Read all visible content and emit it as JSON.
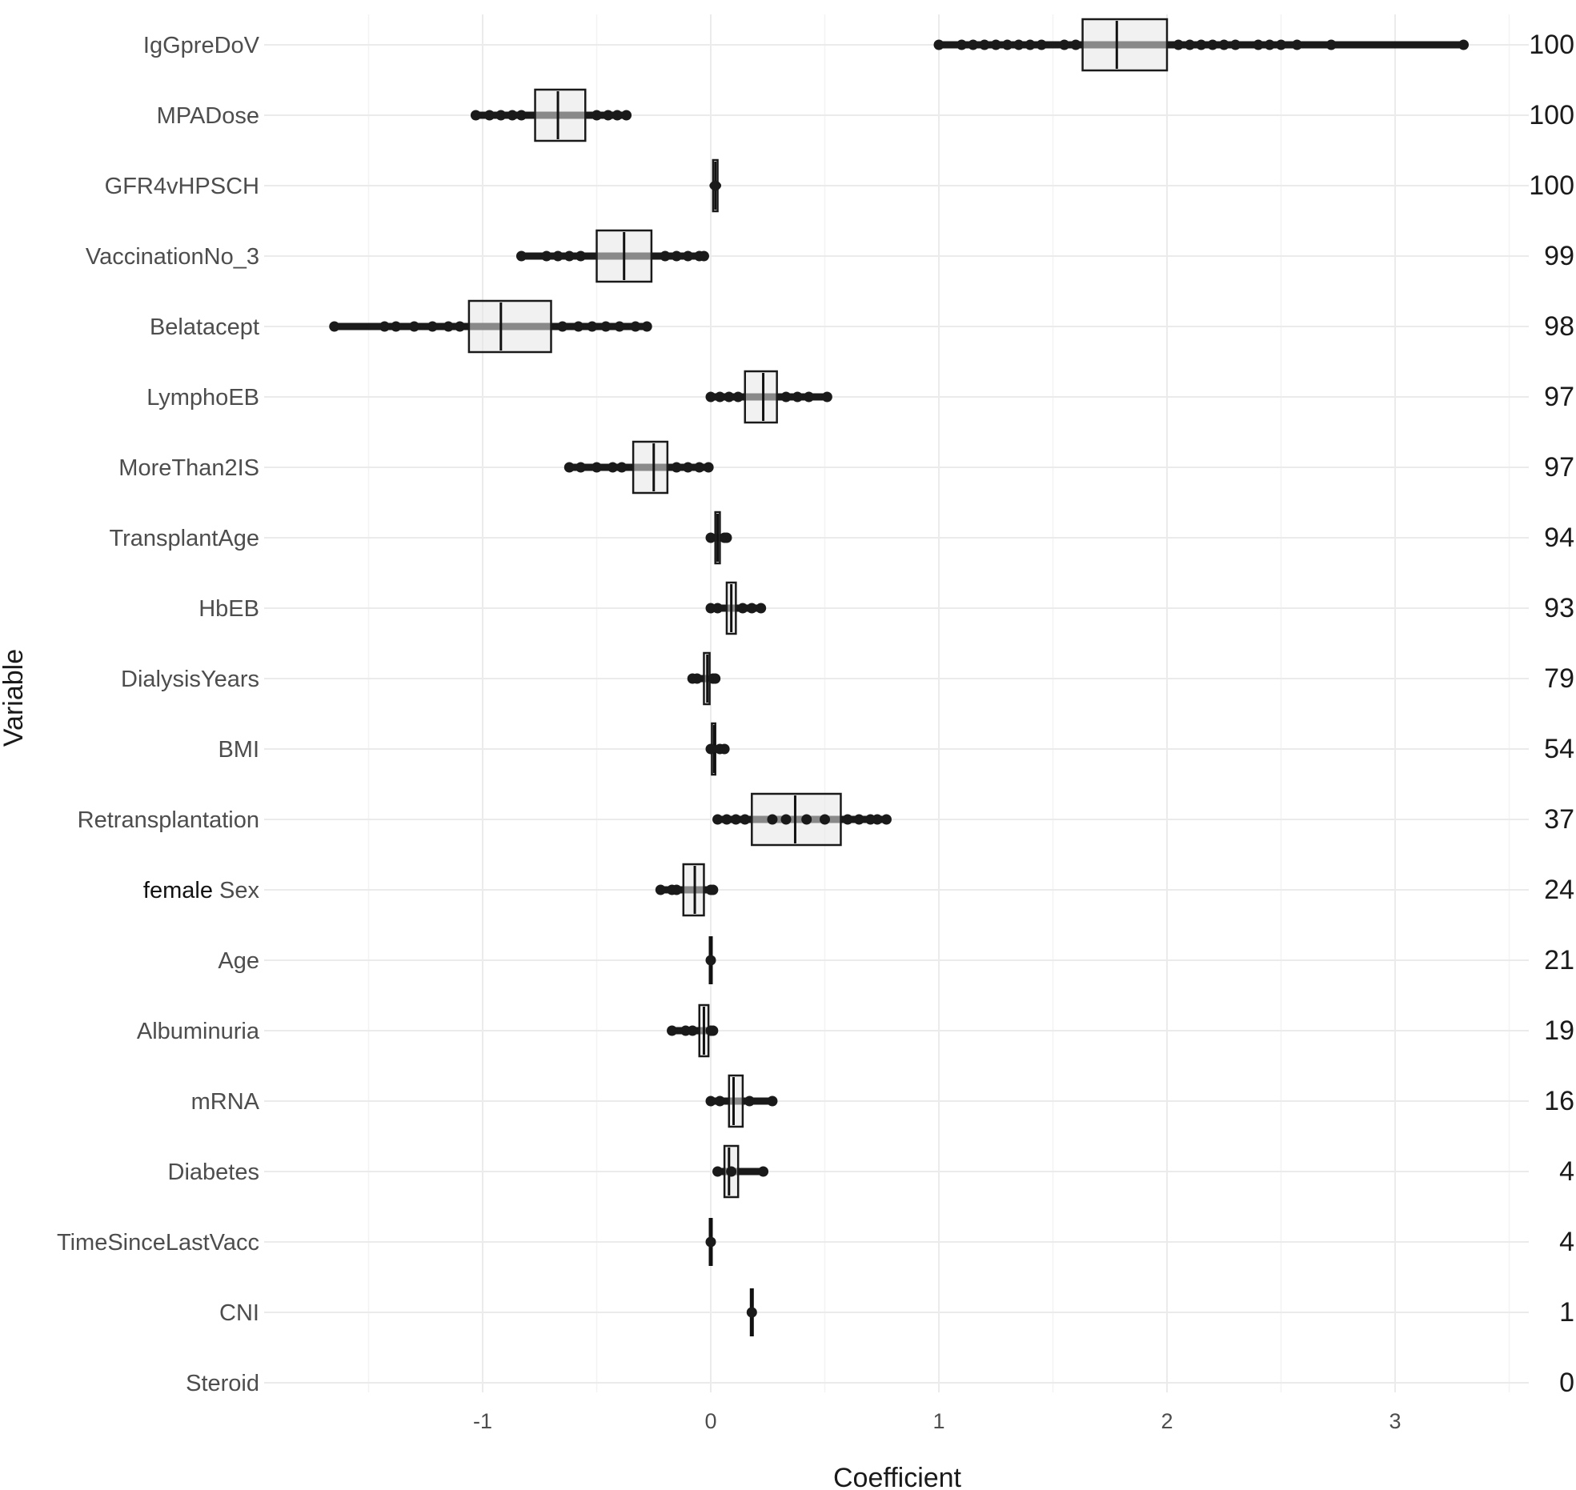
{
  "chart_data": {
    "type": "boxplot",
    "orientation": "horizontal",
    "xlabel": "Coefficient",
    "ylabel": "Variable",
    "xlim": [
      -1.92,
      3.52
    ],
    "xticks": [
      -1,
      0,
      1,
      2,
      3
    ],
    "grid": true,
    "variables": [
      {
        "name": "IgGpreDoV",
        "count": "100",
        "box": [
          1.63,
          1.78,
          2.0
        ],
        "span": [
          1.0,
          3.3
        ],
        "points": [
          1.0,
          1.1,
          1.15,
          1.2,
          1.25,
          1.3,
          1.35,
          1.4,
          1.45,
          1.55,
          1.6,
          2.05,
          2.1,
          2.15,
          2.2,
          2.25,
          2.3,
          2.4,
          2.45,
          2.5,
          2.57,
          2.72,
          3.3
        ]
      },
      {
        "name": "MPADose",
        "count": "100",
        "box": [
          -0.77,
          -0.67,
          -0.55
        ],
        "span": [
          -1.03,
          -0.37
        ],
        "points": [
          -1.03,
          -0.97,
          -0.92,
          -0.87,
          -0.83,
          -0.5,
          -0.45,
          -0.41,
          -0.37
        ]
      },
      {
        "name": "GFR4vHPSCH",
        "count": "100",
        "box": [
          0.01,
          0.02,
          0.03
        ],
        "span": [
          0.01,
          0.03
        ],
        "points": [
          0.02
        ]
      },
      {
        "name": "VaccinationNo_3",
        "count": "99",
        "box": [
          -0.5,
          -0.38,
          -0.26
        ],
        "span": [
          -0.83,
          -0.03
        ],
        "points": [
          -0.83,
          -0.72,
          -0.67,
          -0.62,
          -0.57,
          -0.2,
          -0.15,
          -0.1,
          -0.05,
          -0.03
        ]
      },
      {
        "name": "Belatacept",
        "count": "98",
        "box": [
          -1.06,
          -0.92,
          -0.7
        ],
        "span": [
          -1.65,
          -0.28
        ],
        "points": [
          -1.65,
          -1.43,
          -1.38,
          -1.3,
          -1.22,
          -1.15,
          -1.1,
          -0.65,
          -0.58,
          -0.52,
          -0.46,
          -0.4,
          -0.33,
          -0.28
        ]
      },
      {
        "name": "LymphoEB",
        "count": "97",
        "box": [
          0.15,
          0.23,
          0.29
        ],
        "span": [
          0.0,
          0.51
        ],
        "points": [
          0.0,
          0.04,
          0.08,
          0.12,
          0.33,
          0.38,
          0.43,
          0.51
        ]
      },
      {
        "name": "MoreThan2IS",
        "count": "97",
        "box": [
          -0.34,
          -0.25,
          -0.19
        ],
        "span": [
          -0.62,
          -0.01
        ],
        "points": [
          -0.62,
          -0.57,
          -0.5,
          -0.43,
          -0.39,
          -0.15,
          -0.1,
          -0.05,
          -0.01
        ]
      },
      {
        "name": "TransplantAge",
        "count": "94",
        "box": [
          0.02,
          0.03,
          0.04
        ],
        "span": [
          0.0,
          0.07
        ],
        "points": [
          0.0,
          0.06,
          0.07
        ]
      },
      {
        "name": "HbEB",
        "count": "93",
        "box": [
          0.07,
          0.09,
          0.11
        ],
        "span": [
          0.0,
          0.22
        ],
        "points": [
          0.0,
          0.03,
          0.14,
          0.18,
          0.22
        ]
      },
      {
        "name": "DialysisYears",
        "count": "79",
        "box": [
          -0.03,
          -0.015,
          -0.005
        ],
        "span": [
          -0.08,
          0.02
        ],
        "points": [
          -0.08,
          -0.06,
          0.01,
          0.02
        ]
      },
      {
        "name": "BMI",
        "count": "54",
        "box": [
          0.005,
          0.015,
          0.02
        ],
        "span": [
          0.0,
          0.06
        ],
        "points": [
          0.0,
          0.04,
          0.06
        ]
      },
      {
        "name": "Retransplantation",
        "count": "37",
        "box": [
          0.18,
          0.37,
          0.57
        ],
        "span": [
          0.03,
          0.77
        ],
        "points": [
          0.03,
          0.07,
          0.11,
          0.15,
          0.27,
          0.33,
          0.42,
          0.5,
          0.6,
          0.65,
          0.7,
          0.73,
          0.77
        ]
      },
      {
        "name": "female Sex",
        "name_dark": "female",
        "name_rest": " Sex",
        "count": "24",
        "box": [
          -0.12,
          -0.07,
          -0.03
        ],
        "span": [
          -0.22,
          0.01
        ],
        "points": [
          -0.22,
          -0.17,
          -0.15,
          0.0,
          0.01
        ]
      },
      {
        "name": "Age",
        "count": "21",
        "box": [
          0.0,
          0.0,
          0.0
        ],
        "span": [
          0.0,
          0.005
        ],
        "points": [
          0.0
        ]
      },
      {
        "name": "Albuminuria",
        "count": "19",
        "box": [
          -0.05,
          -0.03,
          -0.01
        ],
        "span": [
          -0.17,
          0.01
        ],
        "points": [
          -0.17,
          -0.11,
          -0.08,
          0.0,
          0.01
        ]
      },
      {
        "name": "mRNA",
        "count": "16",
        "box": [
          0.08,
          0.1,
          0.14
        ],
        "span": [
          0.0,
          0.27
        ],
        "points": [
          0.0,
          0.04,
          0.17,
          0.27
        ]
      },
      {
        "name": "Diabetes",
        "count": "4",
        "box": [
          0.06,
          0.08,
          0.12
        ],
        "span": [
          0.03,
          0.23
        ],
        "points": [
          0.03,
          0.09,
          0.23
        ]
      },
      {
        "name": "TimeSinceLastVacc",
        "count": "4",
        "box": [
          0.0,
          0.0,
          0.0
        ],
        "span": [
          0.0,
          0.005
        ],
        "points": [
          0.0
        ]
      },
      {
        "name": "CNI",
        "count": "1",
        "box": [
          0.18,
          0.18,
          0.18
        ],
        "span": [
          0.18,
          0.18
        ],
        "points": [
          0.18
        ]
      },
      {
        "name": "Steroid",
        "count": "0",
        "box": null,
        "span": null,
        "points": []
      }
    ]
  }
}
